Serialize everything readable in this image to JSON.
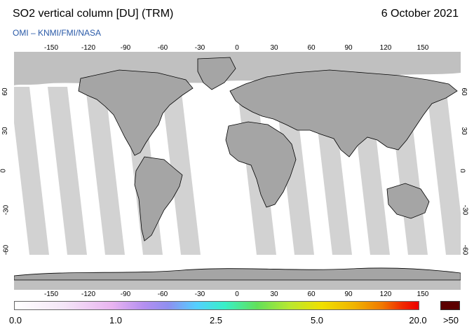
{
  "header": {
    "title": "SO2 vertical column [DU] (TRM)",
    "date": "6 October 2021",
    "credit": "OMI  –  KNMI/FMI/NASA"
  },
  "map": {
    "projection": "equirectangular",
    "lon_ticks": [
      "-150",
      "-120",
      "-90",
      "-60",
      "-30",
      "0",
      "30",
      "60",
      "90",
      "120",
      "150"
    ],
    "lat_ticks": [
      "60",
      "30",
      "0",
      "-30",
      "-60"
    ],
    "colors": {
      "land_gray": "#a5a5a5",
      "swath_gray": "#d2d2d2",
      "no_data_gray": "#c0c0c0",
      "ocean": "#ffffff"
    }
  },
  "colorbar": {
    "labels": [
      "0.0",
      "1.0",
      "2.5",
      "5.0",
      "20.0"
    ],
    "overflow_label": ">50",
    "overflow_color": "#5b0000"
  }
}
